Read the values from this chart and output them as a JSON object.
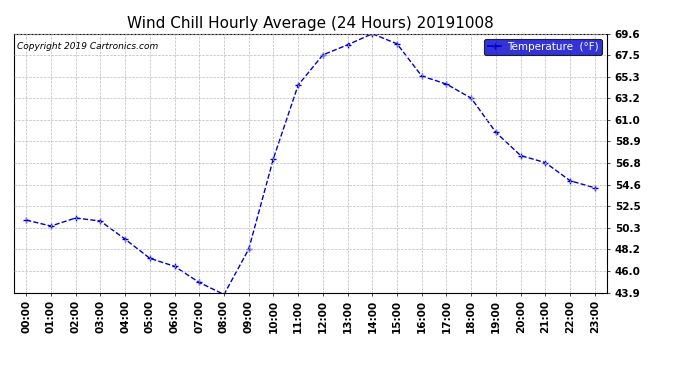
{
  "title": "Wind Chill Hourly Average (24 Hours) 20191008",
  "copyright_text": "Copyright 2019 Cartronics.com",
  "legend_label": "Temperature  (°F)",
  "hours": [
    0,
    1,
    2,
    3,
    4,
    5,
    6,
    7,
    8,
    9,
    10,
    11,
    12,
    13,
    14,
    15,
    16,
    17,
    18,
    19,
    20,
    21,
    22,
    23
  ],
  "hour_labels": [
    "00:00",
    "01:00",
    "02:00",
    "03:00",
    "04:00",
    "05:00",
    "06:00",
    "07:00",
    "08:00",
    "09:00",
    "10:00",
    "11:00",
    "12:00",
    "13:00",
    "14:00",
    "15:00",
    "16:00",
    "17:00",
    "18:00",
    "19:00",
    "20:00",
    "21:00",
    "22:00",
    "23:00"
  ],
  "values": [
    51.1,
    50.5,
    51.3,
    51.0,
    49.2,
    47.3,
    46.5,
    44.9,
    43.7,
    48.2,
    57.2,
    64.5,
    67.5,
    68.5,
    69.6,
    68.6,
    65.4,
    64.6,
    63.2,
    59.8,
    57.5,
    56.8,
    55.0,
    54.3
  ],
  "ylim_min": 43.9,
  "ylim_max": 69.6,
  "yticks": [
    43.9,
    46.0,
    48.2,
    50.3,
    52.5,
    54.6,
    56.8,
    58.9,
    61.0,
    63.2,
    65.3,
    67.5,
    69.6
  ],
  "line_color": "#0000cc",
  "marker_color": "#000044",
  "background_color": "#ffffff",
  "grid_color": "#bbbbbb",
  "title_fontsize": 11,
  "tick_fontsize": 7.5,
  "copyright_fontsize": 6.5,
  "legend_bg": "#0000cc",
  "legend_text_color": "#ffffff",
  "figsize": [
    6.9,
    3.75
  ],
  "dpi": 100
}
